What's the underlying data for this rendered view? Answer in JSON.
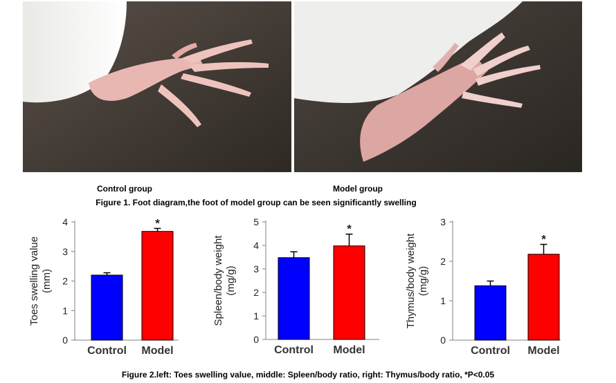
{
  "figure1": {
    "label_left": "Control group",
    "label_right": "Model group",
    "caption": "Figure 1. Foot diagram,the foot of model group can be seen significantly swelling",
    "photo_left_icon": "control-rat-paw-photo",
    "photo_right_icon": "model-rat-paw-photo"
  },
  "figure2": {
    "caption": "Figure 2.left: Toes swelling value, middle: Spleen/body ratio, right: Thymus/body ratio, *P<0.05"
  },
  "colors": {
    "control": "#0000ff",
    "model": "#ff0000",
    "axis": "#808080"
  },
  "chart_data": [
    {
      "type": "bar",
      "categories": [
        "Control",
        "Model"
      ],
      "values": [
        2.2,
        3.68
      ],
      "errors": [
        0.08,
        0.1
      ],
      "significance": [
        "",
        "*"
      ],
      "ylabel_lines": [
        "Toes swelling value",
        "(mm)"
      ],
      "ylim": [
        0,
        4
      ],
      "yticks": [
        0,
        1,
        2,
        3,
        4
      ],
      "grid": false
    },
    {
      "type": "bar",
      "categories": [
        "Control",
        "Model"
      ],
      "values": [
        3.48,
        3.98
      ],
      "errors": [
        0.25,
        0.5
      ],
      "significance": [
        "",
        "*"
      ],
      "ylabel_lines": [
        "Spleen/body weight",
        "(mg/g)"
      ],
      "ylim": [
        0,
        5
      ],
      "yticks": [
        0,
        1,
        2,
        3,
        4,
        5
      ],
      "grid": false
    },
    {
      "type": "bar",
      "categories": [
        "Control",
        "Model"
      ],
      "values": [
        1.38,
        2.18
      ],
      "errors": [
        0.12,
        0.25
      ],
      "significance": [
        "",
        "*"
      ],
      "ylabel_lines": [
        "Thymus/body weight",
        "(mg/g)"
      ],
      "ylim": [
        0,
        3
      ],
      "yticks": [
        0,
        1,
        2,
        3
      ],
      "grid": false
    }
  ]
}
